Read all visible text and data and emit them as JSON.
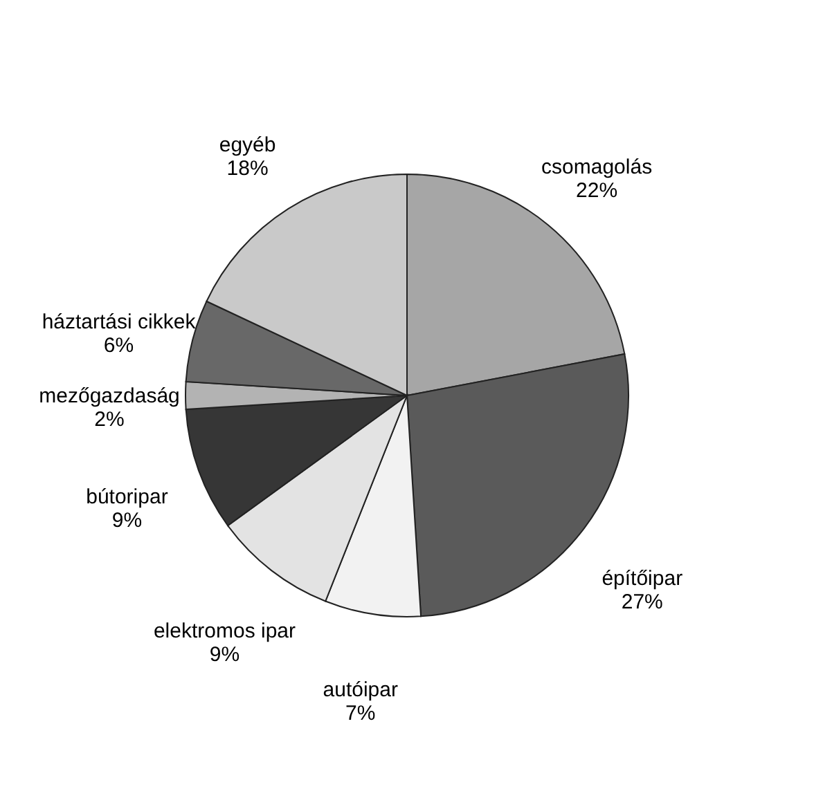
{
  "chart_data": {
    "type": "pie",
    "categories": [
      "csomagolás",
      "építőipar",
      "autóipar",
      "elektromos ipar",
      "bútoripar",
      "mezőgazdaság",
      "háztartási cikkek",
      "egyéb"
    ],
    "values": [
      22,
      27,
      7,
      9,
      9,
      2,
      6,
      18
    ],
    "value_labels": [
      "22%",
      "27%",
      "7%",
      "9%",
      "9%",
      "2%",
      "6%",
      "18%"
    ],
    "colors": [
      "#a6a6a6",
      "#5a5a5a",
      "#f2f2f2",
      "#e3e3e3",
      "#363636",
      "#b3b3b3",
      "#686868",
      "#c9c9c9"
    ],
    "legend": false
  }
}
